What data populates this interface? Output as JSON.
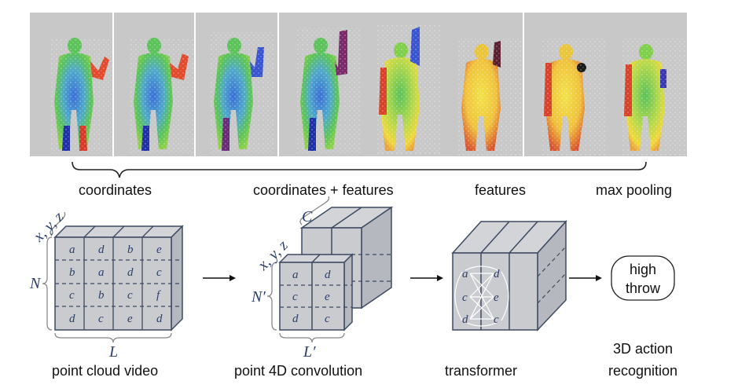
{
  "frame_labels": [
    "coordinates",
    "coordinates + features",
    "features",
    "max pooling"
  ],
  "stage_labels": {
    "input": "point cloud video",
    "conv": "point 4D convolution",
    "transformer": "transformer",
    "output_line1": "3D action",
    "output_line2": "recognition"
  },
  "dims": {
    "xyz": "x, y, z",
    "N": "N",
    "L": "L",
    "C": "C",
    "xyz2": "x, y, z",
    "N_prime": "N′",
    "L_prime": "L′"
  },
  "input_grid": [
    [
      "a",
      "d",
      "b",
      "e"
    ],
    [
      "b",
      "a",
      "d",
      "c"
    ],
    [
      "c",
      "b",
      "c",
      "f"
    ],
    [
      "d",
      "c",
      "e",
      "d"
    ]
  ],
  "conv_grid": [
    [
      "a",
      "d"
    ],
    [
      "c",
      "e"
    ],
    [
      "d",
      "c"
    ]
  ],
  "transformer_grid": [
    [
      "a",
      "d"
    ],
    [
      "c",
      "e"
    ],
    [
      "d",
      "c"
    ]
  ],
  "result": {
    "line1": "high",
    "line2": "throw"
  },
  "colors": {
    "panel": "#c8c8c8",
    "cube_fill": "#c9cbcf",
    "cube_stroke": "#3d4a63",
    "accent_text": "#2b3f6b"
  }
}
